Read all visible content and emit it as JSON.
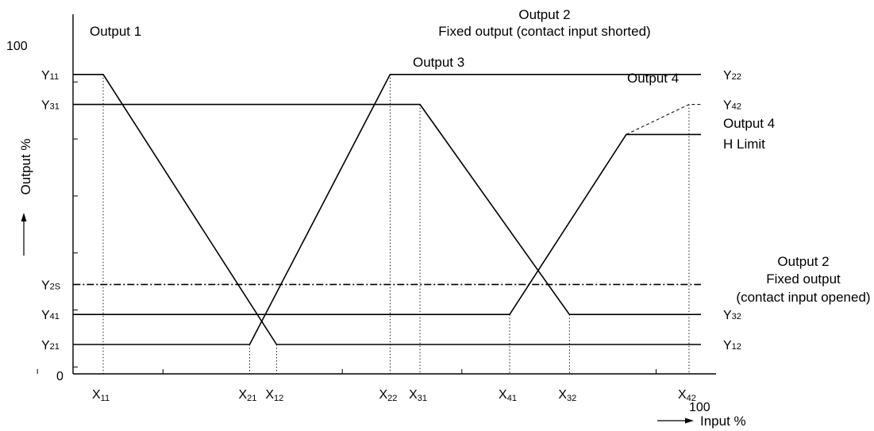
{
  "chart_data": {
    "type": "line",
    "xlabel": "Input %",
    "ylabel": "Output %",
    "y_ticks": {
      "100": "100",
      "0": "0"
    },
    "x_ticks": {
      "100": "100"
    },
    "x_points": [
      {
        "name": "X11",
        "base": "X",
        "sub": "11",
        "value": 5
      },
      {
        "name": "X21",
        "base": "X",
        "sub": "21",
        "value": 29.5
      },
      {
        "name": "X12",
        "base": "X",
        "sub": "12",
        "value": 34
      },
      {
        "name": "X22",
        "base": "X",
        "sub": "22",
        "value": 53
      },
      {
        "name": "X31",
        "base": "X",
        "sub": "31",
        "value": 58
      },
      {
        "name": "X41",
        "base": "X",
        "sub": "41",
        "value": 73
      },
      {
        "name": "X32",
        "base": "X",
        "sub": "32",
        "value": 83
      },
      {
        "name": "X42",
        "base": "X",
        "sub": "42",
        "value": 103
      }
    ],
    "y_points": [
      {
        "name": "Y11",
        "base": "Y",
        "sub": "11",
        "value": 100,
        "side": "left"
      },
      {
        "name": "Y31",
        "base": "Y",
        "sub": "31",
        "value": 90,
        "side": "left"
      },
      {
        "name": "Y2S",
        "base": "Y",
        "sub": "2S",
        "value": 30,
        "side": "left"
      },
      {
        "name": "Y41",
        "base": "Y",
        "sub": "41",
        "value": 20,
        "side": "left"
      },
      {
        "name": "Y21",
        "base": "Y",
        "sub": "21",
        "value": 10,
        "side": "left"
      },
      {
        "name": "Y22",
        "base": "Y",
        "sub": "22",
        "value": 100,
        "side": "right"
      },
      {
        "name": "Y42",
        "base": "Y",
        "sub": "42",
        "value": 90,
        "side": "right"
      },
      {
        "name": "Y32",
        "base": "Y",
        "sub": "32",
        "value": 20,
        "side": "right"
      },
      {
        "name": "Y12",
        "base": "Y",
        "sub": "12",
        "value": 10,
        "side": "right"
      }
    ],
    "series": [
      {
        "id": "out1",
        "name": "Output 1",
        "style": "solid",
        "points": [
          [
            0,
            100
          ],
          [
            5,
            100
          ],
          [
            34,
            10
          ],
          [
            105,
            10
          ]
        ]
      },
      {
        "id": "out2",
        "name": "Output 2",
        "style": "solid",
        "points": [
          [
            0,
            10
          ],
          [
            29.5,
            10
          ],
          [
            53,
            100
          ],
          [
            105,
            100
          ]
        ]
      },
      {
        "id": "out3",
        "name": "Output 3",
        "style": "solid",
        "points": [
          [
            0,
            90
          ],
          [
            58,
            90
          ],
          [
            83,
            20
          ],
          [
            105,
            20
          ]
        ]
      },
      {
        "id": "out4",
        "name": "Output 4",
        "style": "solid",
        "points": [
          [
            0,
            20
          ],
          [
            73,
            20
          ],
          [
            92.5,
            80
          ],
          [
            105,
            80
          ]
        ]
      },
      {
        "id": "out4-ext",
        "name": "Output 4",
        "style": "dashed",
        "points": [
          [
            92.5,
            80
          ],
          [
            103,
            90
          ],
          [
            105,
            90
          ]
        ]
      },
      {
        "id": "out2-fixed",
        "name": "Output 2",
        "style": "dashdot",
        "points": [
          [
            0,
            30
          ],
          [
            105,
            30
          ]
        ]
      }
    ],
    "annotations": {
      "output1": "Output 1",
      "output2_top_1": "Output 2",
      "output2_top_2": "Fixed output (contact input shorted)",
      "output3": "Output 3",
      "output4": "Output 4",
      "output4_hlimit_1": "Output 4",
      "output4_hlimit_2": "H Limit",
      "output2_right_1": "Output 2",
      "output2_right_2": "Fixed output",
      "output2_right_3": "(contact input opened)"
    },
    "xlim": [
      -10,
      110
    ],
    "ylim": [
      0,
      100
    ]
  }
}
